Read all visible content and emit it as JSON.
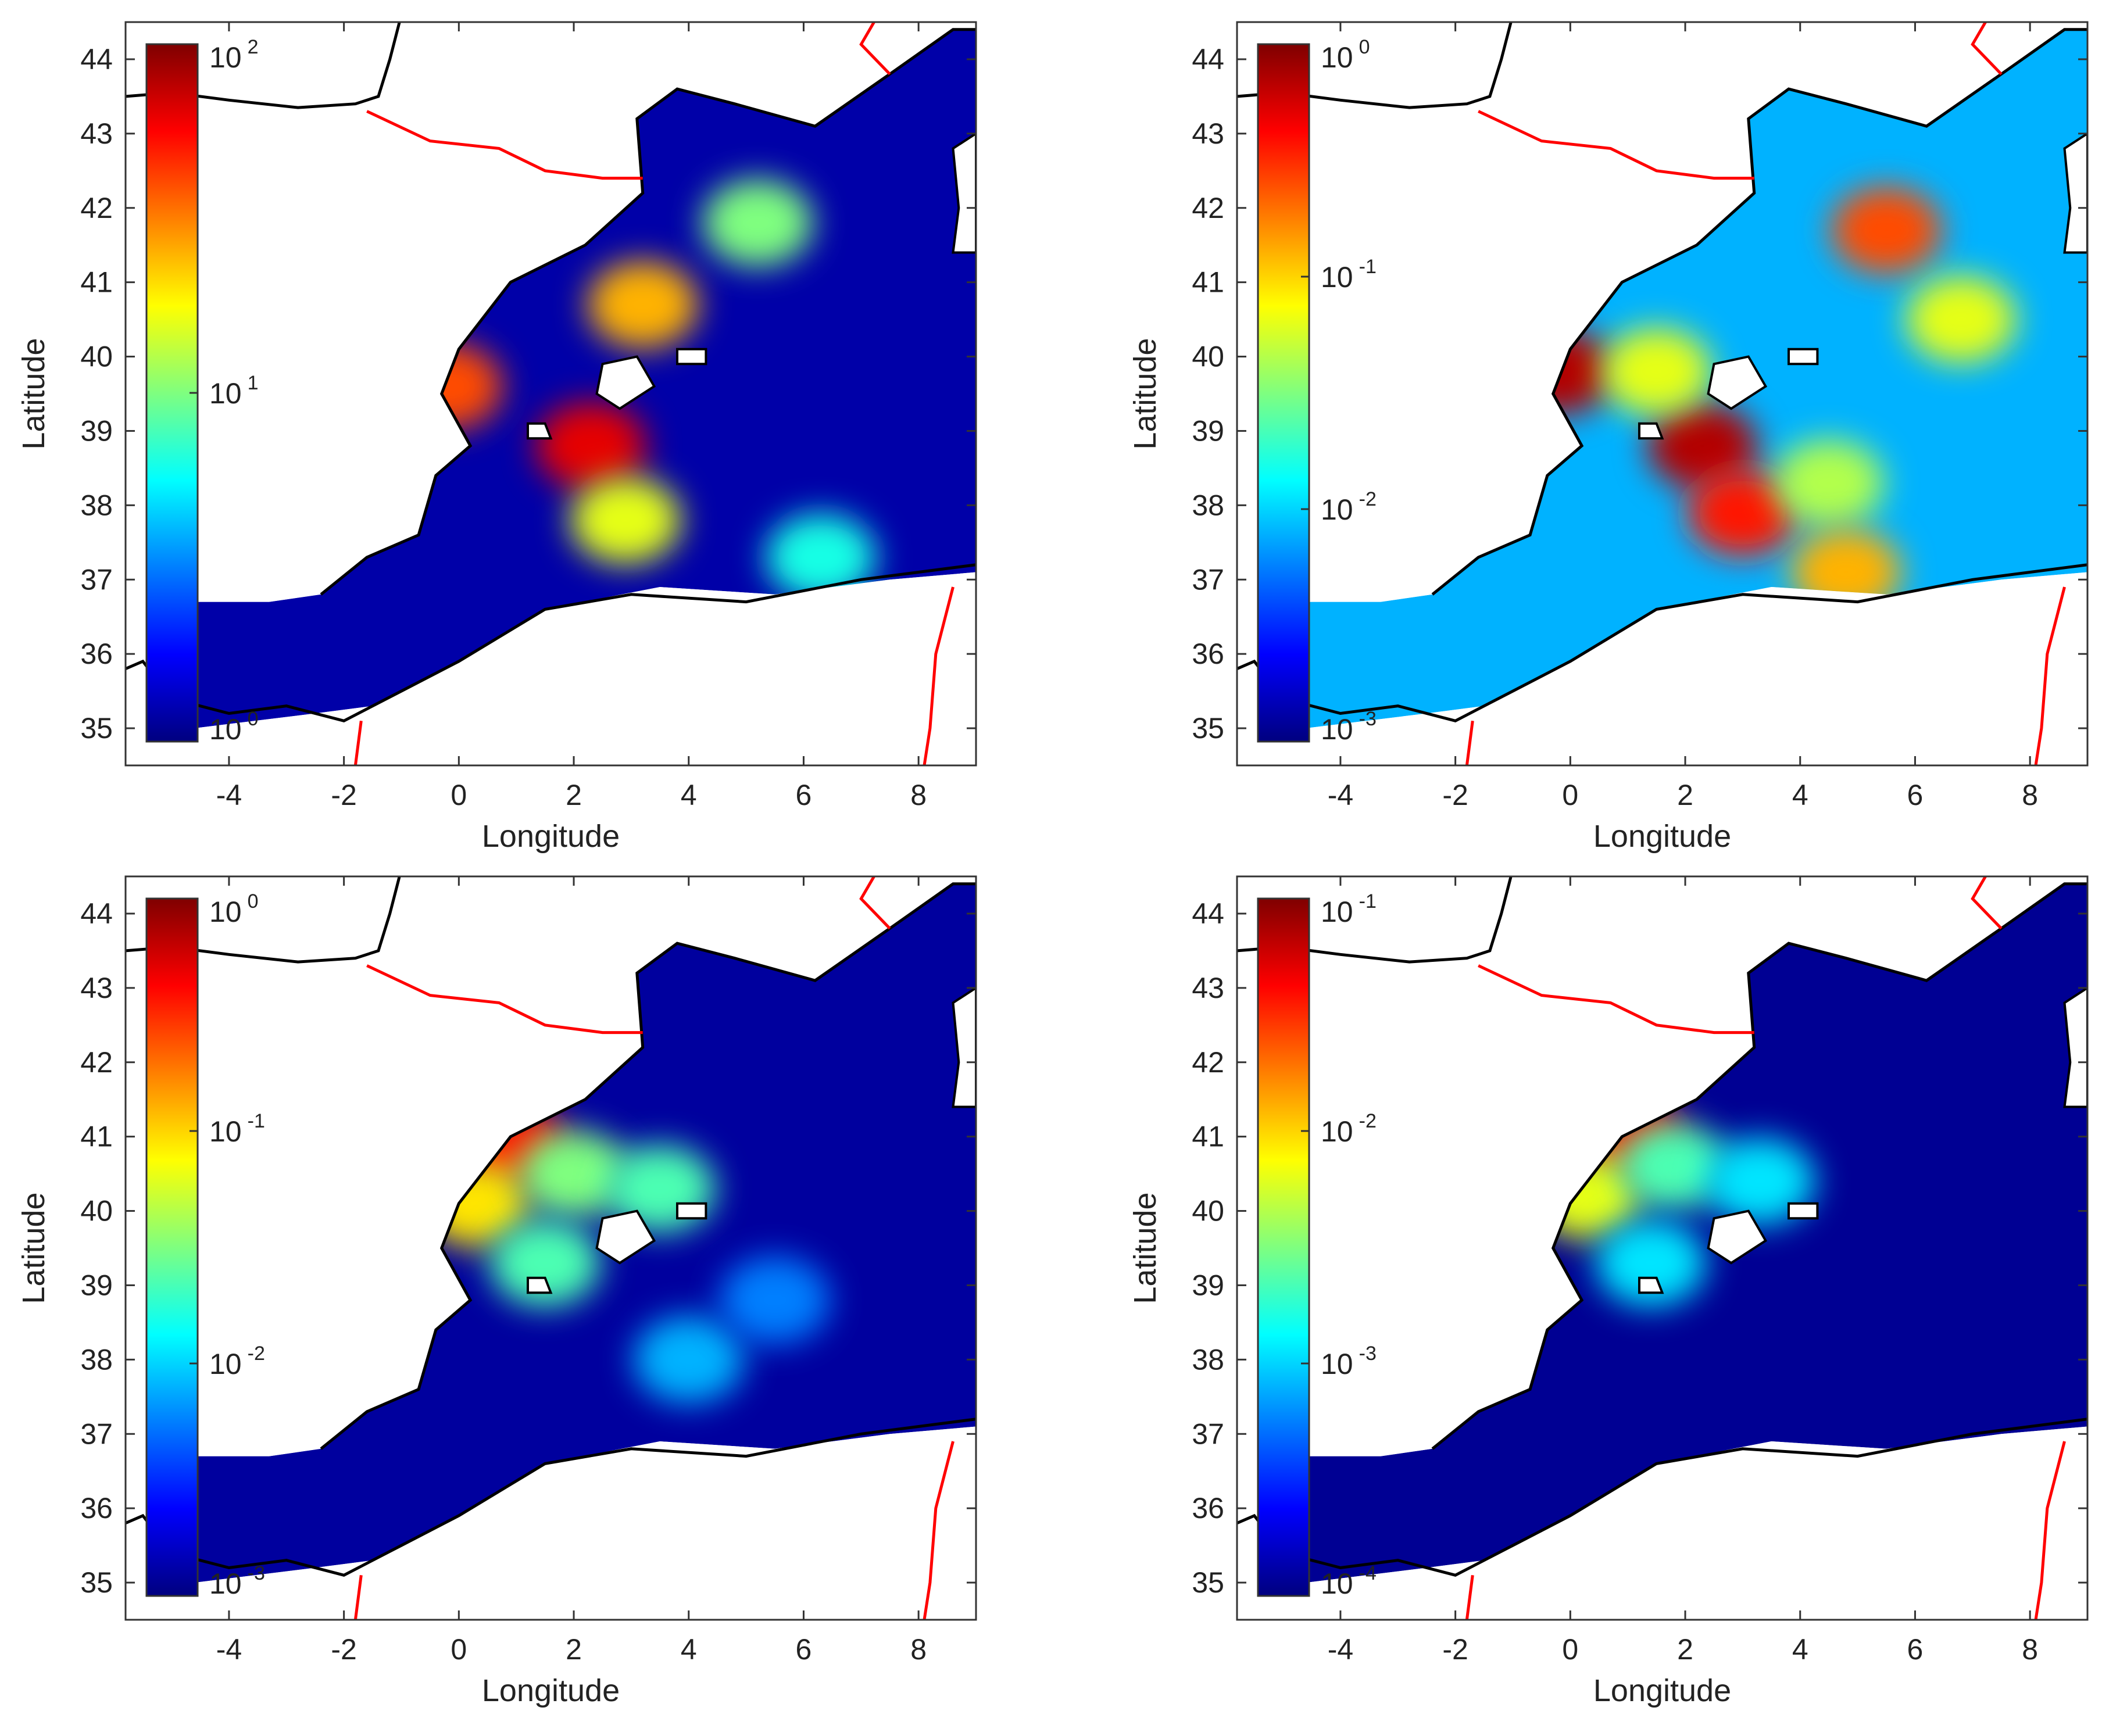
{
  "chart_data": [
    {
      "type": "heatmap",
      "xlabel": "Longitude",
      "ylabel": "Latitude",
      "xlim": [
        -5.8,
        9
      ],
      "ylim": [
        34.5,
        44.5
      ],
      "xticks": [
        "-4",
        "-2",
        "0",
        "2",
        "4",
        "6",
        "8"
      ],
      "yticks": [
        "35",
        "36",
        "37",
        "38",
        "39",
        "40",
        "41",
        "42",
        "43",
        "44"
      ],
      "colorbar": {
        "scale": "log",
        "ticks": [
          {
            "base": "10",
            "exp": "0"
          },
          {
            "base": "10",
            "exp": "1"
          },
          {
            "base": "10",
            "exp": "2"
          }
        ]
      },
      "field": {
        "background_level": 0.04,
        "patches": [
          {
            "lon": -0.2,
            "lat": 39.6,
            "level": 0.8
          },
          {
            "lon": 2.3,
            "lat": 38.8,
            "level": 0.9
          },
          {
            "lon": 3.2,
            "lat": 40.7,
            "level": 0.7
          },
          {
            "lon": 5.2,
            "lat": 41.8,
            "level": 0.5
          },
          {
            "lon": 6.3,
            "lat": 37.3,
            "level": 0.4
          },
          {
            "lon": 2.9,
            "lat": 37.8,
            "level": 0.6
          }
        ]
      }
    },
    {
      "type": "heatmap",
      "xlabel": "Longitude",
      "ylabel": "Latitude",
      "xlim": [
        -5.8,
        9
      ],
      "ylim": [
        34.5,
        44.5
      ],
      "xticks": [
        "-4",
        "-2",
        "0",
        "2",
        "4",
        "6",
        "8"
      ],
      "yticks": [
        "35",
        "36",
        "37",
        "38",
        "39",
        "40",
        "41",
        "42",
        "43",
        "44"
      ],
      "colorbar": {
        "scale": "log",
        "ticks": [
          {
            "base": "10",
            "exp": "-3"
          },
          {
            "base": "10",
            "exp": "-2"
          },
          {
            "base": "10",
            "exp": "-1"
          },
          {
            "base": "10",
            "exp": "0"
          }
        ]
      },
      "field": {
        "background_level": 0.3,
        "patches": [
          {
            "lon": -0.2,
            "lat": 39.8,
            "level": 0.95
          },
          {
            "lon": 2.3,
            "lat": 38.8,
            "level": 0.95
          },
          {
            "lon": 3.0,
            "lat": 37.9,
            "level": 0.85
          },
          {
            "lon": 5.5,
            "lat": 41.7,
            "level": 0.8
          },
          {
            "lon": 1.5,
            "lat": 39.8,
            "level": 0.6
          },
          {
            "lon": 4.5,
            "lat": 38.3,
            "level": 0.55
          },
          {
            "lon": 4.8,
            "lat": 37.1,
            "level": 0.7
          },
          {
            "lon": 6.8,
            "lat": 40.5,
            "level": 0.6
          }
        ]
      }
    },
    {
      "type": "heatmap",
      "xlabel": "Longitude",
      "ylabel": "Latitude",
      "xlim": [
        -5.8,
        9
      ],
      "ylim": [
        34.5,
        44.5
      ],
      "xticks": [
        "-4",
        "-2",
        "0",
        "2",
        "4",
        "6",
        "8"
      ],
      "yticks": [
        "35",
        "36",
        "37",
        "38",
        "39",
        "40",
        "41",
        "42",
        "43",
        "44"
      ],
      "colorbar": {
        "scale": "log",
        "ticks": [
          {
            "base": "10",
            "exp": "-3"
          },
          {
            "base": "10",
            "exp": "-2"
          },
          {
            "base": "10",
            "exp": "-1"
          },
          {
            "base": "10",
            "exp": "0"
          }
        ]
      },
      "field": {
        "background_level": 0.03,
        "patches": [
          {
            "lon": 0.9,
            "lat": 40.9,
            "level": 0.85
          },
          {
            "lon": 0.3,
            "lat": 40.1,
            "level": 0.65
          },
          {
            "lon": 2.0,
            "lat": 40.5,
            "level": 0.5
          },
          {
            "lon": 3.5,
            "lat": 40.3,
            "level": 0.45
          },
          {
            "lon": 1.5,
            "lat": 39.3,
            "level": 0.45
          },
          {
            "lon": 4.0,
            "lat": 38.0,
            "level": 0.3
          },
          {
            "lon": 5.5,
            "lat": 38.8,
            "level": 0.25
          }
        ]
      }
    },
    {
      "type": "heatmap",
      "xlabel": "Longitude",
      "ylabel": "Latitude",
      "xlim": [
        -5.8,
        9
      ],
      "ylim": [
        34.5,
        44.5
      ],
      "xticks": [
        "-4",
        "-2",
        "0",
        "2",
        "4",
        "6",
        "8"
      ],
      "yticks": [
        "35",
        "36",
        "37",
        "38",
        "39",
        "40",
        "41",
        "42",
        "43",
        "44"
      ],
      "colorbar": {
        "scale": "log",
        "ticks": [
          {
            "base": "10",
            "exp": "-4"
          },
          {
            "base": "10",
            "exp": "-3"
          },
          {
            "base": "10",
            "exp": "-2"
          },
          {
            "base": "10",
            "exp": "-1"
          }
        ]
      },
      "field": {
        "background_level": 0.02,
        "patches": [
          {
            "lon": 1.0,
            "lat": 41.0,
            "level": 0.85
          },
          {
            "lon": 0.3,
            "lat": 40.2,
            "level": 0.6
          },
          {
            "lon": 1.8,
            "lat": 40.6,
            "level": 0.45
          },
          {
            "lon": 3.3,
            "lat": 40.4,
            "level": 0.35
          },
          {
            "lon": 1.4,
            "lat": 39.3,
            "level": 0.35
          }
        ]
      }
    }
  ],
  "colormap": {
    "name": "jet",
    "stops": [
      "#00007f",
      "#0000ff",
      "#007fff",
      "#00ffff",
      "#7fff7f",
      "#ffff00",
      "#ff7f00",
      "#ff0000",
      "#7f0000"
    ]
  },
  "styles": {
    "coastline_color": "#000000",
    "border_color": "#ff0000",
    "axes_color": "#333333"
  }
}
